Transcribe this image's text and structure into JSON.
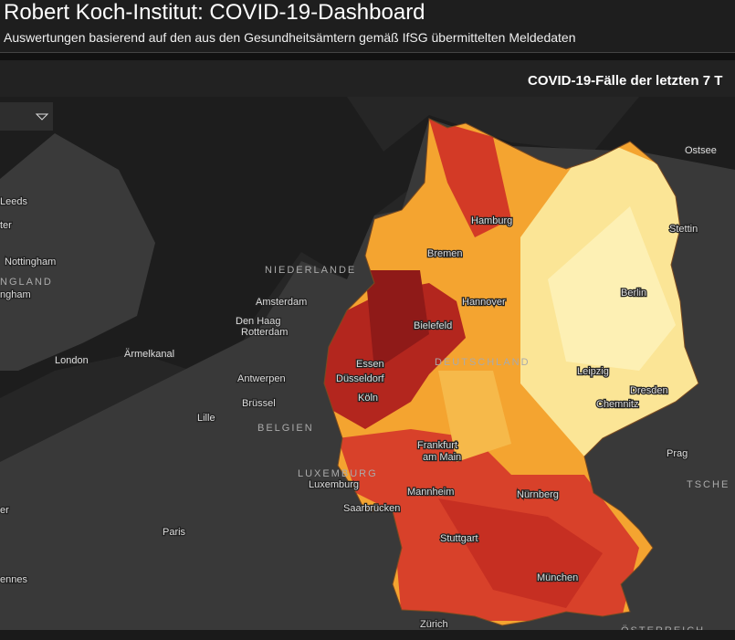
{
  "header": {
    "title": "Robert Koch-Institut: COVID-19-Dashboard",
    "subtitle": "Auswertungen basierend auf den aus den Gesundheitsämtern gemäß IfSG übermittelten Meldedaten"
  },
  "panel": {
    "title": "COVID-19-Fälle der letzten 7 T"
  },
  "map": {
    "places": [
      "Leeds",
      "ter",
      "Nottingham",
      "ngham",
      "London",
      "Ärmelkanal",
      "Amsterdam",
      "Den Haag",
      "Rotterdam",
      "Antwerpen",
      "Brüssel",
      "Lille",
      "Luxemburg",
      "Paris",
      "ennes",
      "er",
      "Saarbrücken",
      "Hamburg",
      "Bremen",
      "Hannover",
      "Bielefeld",
      "Essen",
      "Düsseldorf",
      "Köln",
      "Frankfurt",
      "am Main",
      "Mannheim",
      "Stuttgart",
      "Nürnberg",
      "München",
      "Zürich",
      "Berlin",
      "Leipzig",
      "Dresden",
      "Chemnitz",
      "Stettin",
      "Ostsee",
      "Prag"
    ],
    "regions": [
      "NGLAND",
      "NIEDERLANDE",
      "BELGIEN",
      "LUXEMBURG",
      "DEUTSCHLAND",
      "TSCHE",
      "ÖSTERREICH"
    ]
  }
}
